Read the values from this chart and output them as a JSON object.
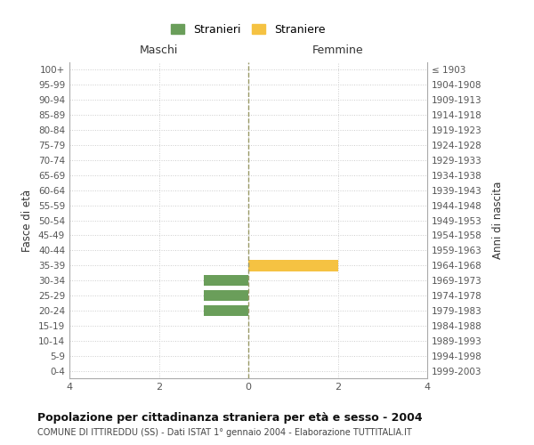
{
  "age_groups": [
    "100+",
    "95-99",
    "90-94",
    "85-89",
    "80-84",
    "75-79",
    "70-74",
    "65-69",
    "60-64",
    "55-59",
    "50-54",
    "45-49",
    "40-44",
    "35-39",
    "30-34",
    "25-29",
    "20-24",
    "15-19",
    "10-14",
    "5-9",
    "0-4"
  ],
  "birth_years": [
    "≤ 1903",
    "1904-1908",
    "1909-1913",
    "1914-1918",
    "1919-1923",
    "1924-1928",
    "1929-1933",
    "1934-1938",
    "1939-1943",
    "1944-1948",
    "1949-1953",
    "1954-1958",
    "1959-1963",
    "1964-1968",
    "1969-1973",
    "1974-1978",
    "1979-1983",
    "1984-1988",
    "1989-1993",
    "1994-1998",
    "1999-2003"
  ],
  "males": [
    0,
    0,
    0,
    0,
    0,
    0,
    0,
    0,
    0,
    0,
    0,
    0,
    0,
    0,
    1,
    1,
    1,
    0,
    0,
    0,
    0
  ],
  "females": [
    0,
    0,
    0,
    0,
    0,
    0,
    0,
    0,
    0,
    0,
    0,
    0,
    0,
    2,
    0,
    0,
    0,
    0,
    0,
    0,
    0
  ],
  "male_color": "#6a9e5a",
  "female_color": "#f5c242",
  "title_main": "Popolazione per cittadinanza straniera per età e sesso - 2004",
  "title_sub": "COMUNE DI ITTIREDDU (SS) - Dati ISTAT 1° gennaio 2004 - Elaborazione TUTTITALIA.IT",
  "legend_male": "Stranieri",
  "legend_female": "Straniere",
  "xlabel_left": "Maschi",
  "xlabel_right": "Femmine",
  "ylabel_left": "Fasce di età",
  "ylabel_right": "Anni di nascita",
  "xlim": 4,
  "background_color": "#ffffff",
  "grid_color": "#cccccc",
  "spine_color": "#aaaaaa",
  "axis_label_color": "#333333",
  "tick_label_color": "#555555"
}
